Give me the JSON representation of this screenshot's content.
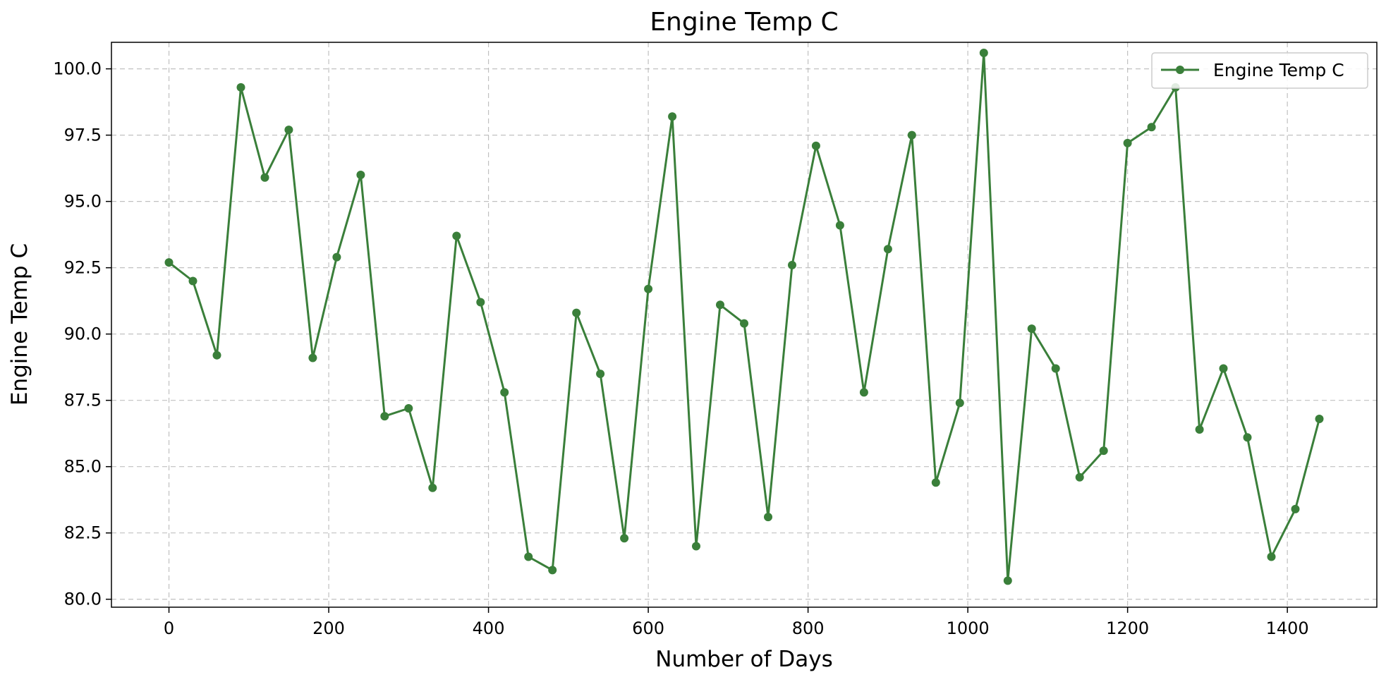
{
  "chart_data": {
    "type": "line",
    "title": "Engine Temp C",
    "xlabel": "Number of Days",
    "ylabel": "Engine Temp C",
    "xlim": [
      -72,
      1512
    ],
    "ylim": [
      79.7,
      101.0
    ],
    "x_ticks": [
      0,
      200,
      400,
      600,
      800,
      1000,
      1200,
      1400
    ],
    "x_tick_labels": [
      "0",
      "200",
      "400",
      "600",
      "800",
      "1000",
      "1200",
      "1400"
    ],
    "y_ticks": [
      80.0,
      82.5,
      85.0,
      87.5,
      90.0,
      92.5,
      95.0,
      97.5,
      100.0
    ],
    "y_tick_labels": [
      "80.0",
      "82.5",
      "85.0",
      "87.5",
      "90.0",
      "92.5",
      "95.0",
      "97.5",
      "100.0"
    ],
    "grid": true,
    "legend_position": "top-right",
    "series": [
      {
        "name": "Engine Temp C",
        "color": "#3a7f3a",
        "marker": "circle",
        "x": [
          0,
          30,
          60,
          90,
          120,
          150,
          180,
          210,
          240,
          270,
          300,
          330,
          360,
          390,
          420,
          450,
          480,
          510,
          540,
          570,
          600,
          630,
          660,
          690,
          720,
          750,
          780,
          810,
          840,
          870,
          900,
          930,
          960,
          990,
          1020,
          1050,
          1080,
          1110,
          1140,
          1170,
          1200,
          1230,
          1260,
          1290,
          1320,
          1350,
          1380,
          1410,
          1440
        ],
        "values": [
          92.7,
          92.0,
          89.2,
          99.3,
          95.9,
          97.7,
          89.1,
          92.9,
          96.0,
          86.9,
          87.2,
          84.2,
          93.7,
          91.2,
          87.8,
          81.6,
          81.1,
          90.8,
          88.5,
          82.3,
          91.7,
          98.2,
          82.0,
          91.1,
          90.4,
          83.1,
          92.6,
          97.1,
          94.1,
          87.8,
          93.2,
          97.5,
          84.4,
          87.4,
          100.6,
          80.7,
          90.2,
          88.7,
          84.6,
          85.6,
          97.2,
          97.8,
          99.3,
          86.4,
          88.7,
          86.1,
          81.6,
          83.4,
          86.8
        ]
      }
    ]
  }
}
